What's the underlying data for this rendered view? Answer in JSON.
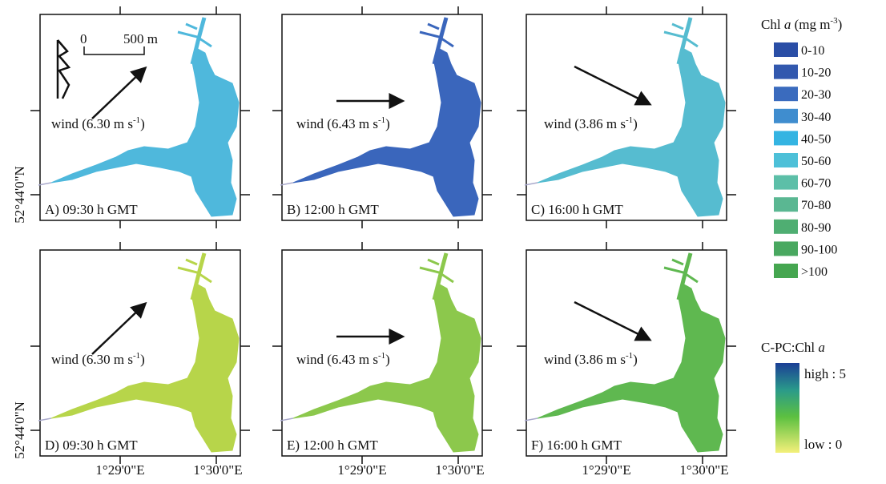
{
  "panels": [
    {
      "label": "A) 09:30 h GMT",
      "wind": {
        "text": "wind (6.30 m s",
        "superscript": "-1",
        "close": ")"
      },
      "color": "#4fb8dc"
    },
    {
      "label": "B) 12:00 h GMT",
      "wind": {
        "text": "wind (6.43 m s",
        "superscript": "-1",
        "close": ")"
      },
      "color": "#3a66bc"
    },
    {
      "label": "C) 16:00 h GMT",
      "wind": {
        "text": "wind (3.86 m s",
        "superscript": "-1",
        "close": ")"
      },
      "color": "#56bcd0"
    },
    {
      "label": "D) 09:30 h GMT",
      "wind": {
        "text": "wind (6.30 m s",
        "superscript": "-1",
        "close": ")"
      },
      "color": "#b7d54a"
    },
    {
      "label": "E) 12:00 h GMT",
      "wind": {
        "text": "wind (6.43 m s",
        "superscript": "-1",
        "close": ")"
      },
      "color": "#8cc84c"
    },
    {
      "label": "F) 16:00 h GMT",
      "wind": {
        "text": "wind (3.86 m s",
        "superscript": "-1",
        "close": ")"
      },
      "color": "#5fb850"
    }
  ],
  "scale_bar": {
    "start": "0",
    "end": "500 m"
  },
  "latitude_label": "52°44'0\"N",
  "longitude_labels": [
    "1°29'0\"E",
    "1°30'0\"E"
  ],
  "chl_legend": {
    "title": {
      "pre": "Chl ",
      "italic": "a",
      "mid": " (mg m",
      "superscript": "-3",
      "post": ")"
    },
    "classes": [
      {
        "label": "0-10",
        "color": "#2a4ea6"
      },
      {
        "label": "10-20",
        "color": "#3258ae"
      },
      {
        "label": "20-30",
        "color": "#3a6bbe"
      },
      {
        "label": "30-40",
        "color": "#3f8dcf"
      },
      {
        "label": "40-50",
        "color": "#34b4e2"
      },
      {
        "label": "50-60",
        "color": "#4dc0d8"
      },
      {
        "label": "60-70",
        "color": "#5cbfa8"
      },
      {
        "label": "70-80",
        "color": "#5ab792"
      },
      {
        "label": "80-90",
        "color": "#4fae72"
      },
      {
        "label": "90-100",
        "color": "#49a860"
      },
      {
        "label": ">100",
        "color": "#45a650"
      }
    ]
  },
  "ratio_legend": {
    "title": {
      "pre": "C-PC:Chl ",
      "italic": "a"
    },
    "high": "high : 5",
    "low": "low : 0"
  }
}
